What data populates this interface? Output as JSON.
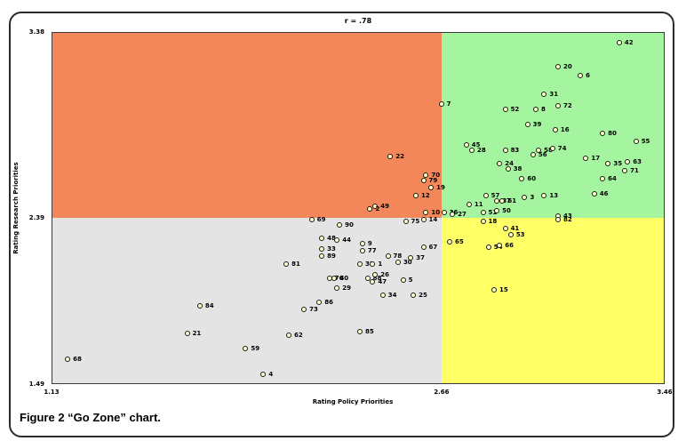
{
  "figure": {
    "caption": "Figure 2 “Go Zone” chart."
  },
  "chart_data": {
    "type": "scatter",
    "title": "r = .78",
    "xlabel": "Rating Policy Priorities",
    "ylabel": "Rating Research Priorities",
    "xlim": [
      1.13,
      3.46
    ],
    "ylim": [
      1.49,
      3.38
    ],
    "x_divider": 2.66,
    "y_divider": 2.39,
    "divider_fx": 0.636,
    "divider_fy": 0.528,
    "x_ticks": [
      "1.13",
      "2.66",
      "3.46"
    ],
    "y_ticks": [
      "3.38",
      "2.39",
      "1.49"
    ],
    "grid": false,
    "legend": "none",
    "marker": {
      "shape": "circle-outline",
      "fill": "#ffffc8",
      "stroke": "#1a1a1a"
    },
    "quadrant_colors": {
      "top_left": "#f4875a",
      "top_right": "#a5f4a0",
      "bottom_left": "#e4e4e4",
      "bottom_right": "#ffff66"
    },
    "points": [
      {
        "label": "42",
        "x": 3.3,
        "y": 3.33
      },
      {
        "label": "20",
        "x": 3.08,
        "y": 3.2
      },
      {
        "label": "6",
        "x": 3.16,
        "y": 3.15
      },
      {
        "label": "31",
        "x": 3.03,
        "y": 3.05
      },
      {
        "label": "7",
        "x": 2.66,
        "y": 3.0
      },
      {
        "label": "52",
        "x": 2.89,
        "y": 2.97
      },
      {
        "label": "8",
        "x": 3.0,
        "y": 2.97
      },
      {
        "label": "72",
        "x": 3.08,
        "y": 2.99
      },
      {
        "label": "39",
        "x": 2.97,
        "y": 2.89
      },
      {
        "label": "16",
        "x": 3.07,
        "y": 2.86
      },
      {
        "label": "80",
        "x": 3.24,
        "y": 2.84
      },
      {
        "label": "55",
        "x": 3.36,
        "y": 2.8
      },
      {
        "label": "45",
        "x": 2.75,
        "y": 2.78
      },
      {
        "label": "28",
        "x": 2.77,
        "y": 2.75
      },
      {
        "label": "83",
        "x": 2.89,
        "y": 2.75
      },
      {
        "label": "56",
        "x": 2.99,
        "y": 2.73
      },
      {
        "label": "58",
        "x": 3.01,
        "y": 2.75
      },
      {
        "label": "74",
        "x": 3.06,
        "y": 2.76
      },
      {
        "label": "17",
        "x": 3.18,
        "y": 2.71
      },
      {
        "label": "24",
        "x": 2.87,
        "y": 2.68
      },
      {
        "label": "35",
        "x": 3.26,
        "y": 2.68
      },
      {
        "label": "63",
        "x": 3.33,
        "y": 2.69
      },
      {
        "label": "38",
        "x": 2.9,
        "y": 2.65
      },
      {
        "label": "71",
        "x": 3.32,
        "y": 2.64
      },
      {
        "label": "60",
        "x": 2.95,
        "y": 2.6
      },
      {
        "label": "64",
        "x": 3.24,
        "y": 2.6
      },
      {
        "label": "57",
        "x": 2.82,
        "y": 2.51
      },
      {
        "label": "46",
        "x": 3.21,
        "y": 2.52
      },
      {
        "label": "87",
        "x": 2.86,
        "y": 2.48
      },
      {
        "label": "61",
        "x": 2.88,
        "y": 2.48
      },
      {
        "label": "3",
        "x": 2.96,
        "y": 2.5
      },
      {
        "label": "13",
        "x": 3.03,
        "y": 2.51
      },
      {
        "label": "11",
        "x": 2.76,
        "y": 2.46
      },
      {
        "label": "36",
        "x": 2.67,
        "y": 2.42
      },
      {
        "label": "27",
        "x": 2.7,
        "y": 2.41
      },
      {
        "label": "51",
        "x": 2.81,
        "y": 2.42
      },
      {
        "label": "50",
        "x": 2.86,
        "y": 2.43
      },
      {
        "label": "43",
        "x": 3.08,
        "y": 2.4
      },
      {
        "label": "22",
        "x": 2.46,
        "y": 2.72
      },
      {
        "label": "70",
        "x": 2.6,
        "y": 2.62
      },
      {
        "label": "79",
        "x": 2.59,
        "y": 2.59
      },
      {
        "label": "19",
        "x": 2.62,
        "y": 2.55
      },
      {
        "label": "12",
        "x": 2.56,
        "y": 2.51
      },
      {
        "label": "49",
        "x": 2.4,
        "y": 2.45
      },
      {
        "label": "2",
        "x": 2.38,
        "y": 2.44
      },
      {
        "label": "10",
        "x": 2.6,
        "y": 2.42
      },
      {
        "label": "69",
        "x": 2.15,
        "y": 2.38
      },
      {
        "label": "90",
        "x": 2.26,
        "y": 2.35
      },
      {
        "label": "75",
        "x": 2.52,
        "y": 2.37
      },
      {
        "label": "14",
        "x": 2.59,
        "y": 2.38
      },
      {
        "label": "48",
        "x": 2.19,
        "y": 2.28
      },
      {
        "label": "44",
        "x": 2.25,
        "y": 2.27
      },
      {
        "label": "33",
        "x": 2.19,
        "y": 2.22
      },
      {
        "label": "9",
        "x": 2.35,
        "y": 2.25
      },
      {
        "label": "77",
        "x": 2.35,
        "y": 2.21
      },
      {
        "label": "67",
        "x": 2.59,
        "y": 2.23
      },
      {
        "label": "89",
        "x": 2.19,
        "y": 2.18
      },
      {
        "label": "78",
        "x": 2.45,
        "y": 2.18
      },
      {
        "label": "32",
        "x": 2.34,
        "y": 2.14
      },
      {
        "label": "1",
        "x": 2.39,
        "y": 2.14
      },
      {
        "label": "30",
        "x": 2.49,
        "y": 2.15
      },
      {
        "label": "37",
        "x": 2.54,
        "y": 2.17
      },
      {
        "label": "81",
        "x": 2.05,
        "y": 2.14
      },
      {
        "label": "76",
        "x": 2.22,
        "y": 2.06
      },
      {
        "label": "40",
        "x": 2.24,
        "y": 2.06
      },
      {
        "label": "88",
        "x": 2.37,
        "y": 2.06
      },
      {
        "label": "26",
        "x": 2.4,
        "y": 2.08
      },
      {
        "label": "47",
        "x": 2.39,
        "y": 2.04
      },
      {
        "label": "5",
        "x": 2.51,
        "y": 2.05
      },
      {
        "label": "29",
        "x": 2.25,
        "y": 2.01
      },
      {
        "label": "34",
        "x": 2.43,
        "y": 1.97
      },
      {
        "label": "25",
        "x": 2.55,
        "y": 1.97
      },
      {
        "label": "86",
        "x": 2.18,
        "y": 1.93
      },
      {
        "label": "73",
        "x": 2.12,
        "y": 1.89
      },
      {
        "label": "84",
        "x": 1.71,
        "y": 1.91
      },
      {
        "label": "85",
        "x": 2.34,
        "y": 1.77
      },
      {
        "label": "62",
        "x": 2.06,
        "y": 1.75
      },
      {
        "label": "21",
        "x": 1.66,
        "y": 1.76
      },
      {
        "label": "59",
        "x": 1.89,
        "y": 1.68
      },
      {
        "label": "68",
        "x": 1.19,
        "y": 1.62
      },
      {
        "label": "4",
        "x": 1.96,
        "y": 1.54
      },
      {
        "label": "82",
        "x": 3.08,
        "y": 2.38
      },
      {
        "label": "18",
        "x": 2.81,
        "y": 2.37
      },
      {
        "label": "41",
        "x": 2.89,
        "y": 2.33
      },
      {
        "label": "53",
        "x": 2.91,
        "y": 2.3
      },
      {
        "label": "65",
        "x": 2.69,
        "y": 2.26
      },
      {
        "label": "54",
        "x": 2.83,
        "y": 2.23
      },
      {
        "label": "66",
        "x": 2.87,
        "y": 2.24
      },
      {
        "label": "15",
        "x": 2.85,
        "y": 2.0
      }
    ]
  }
}
